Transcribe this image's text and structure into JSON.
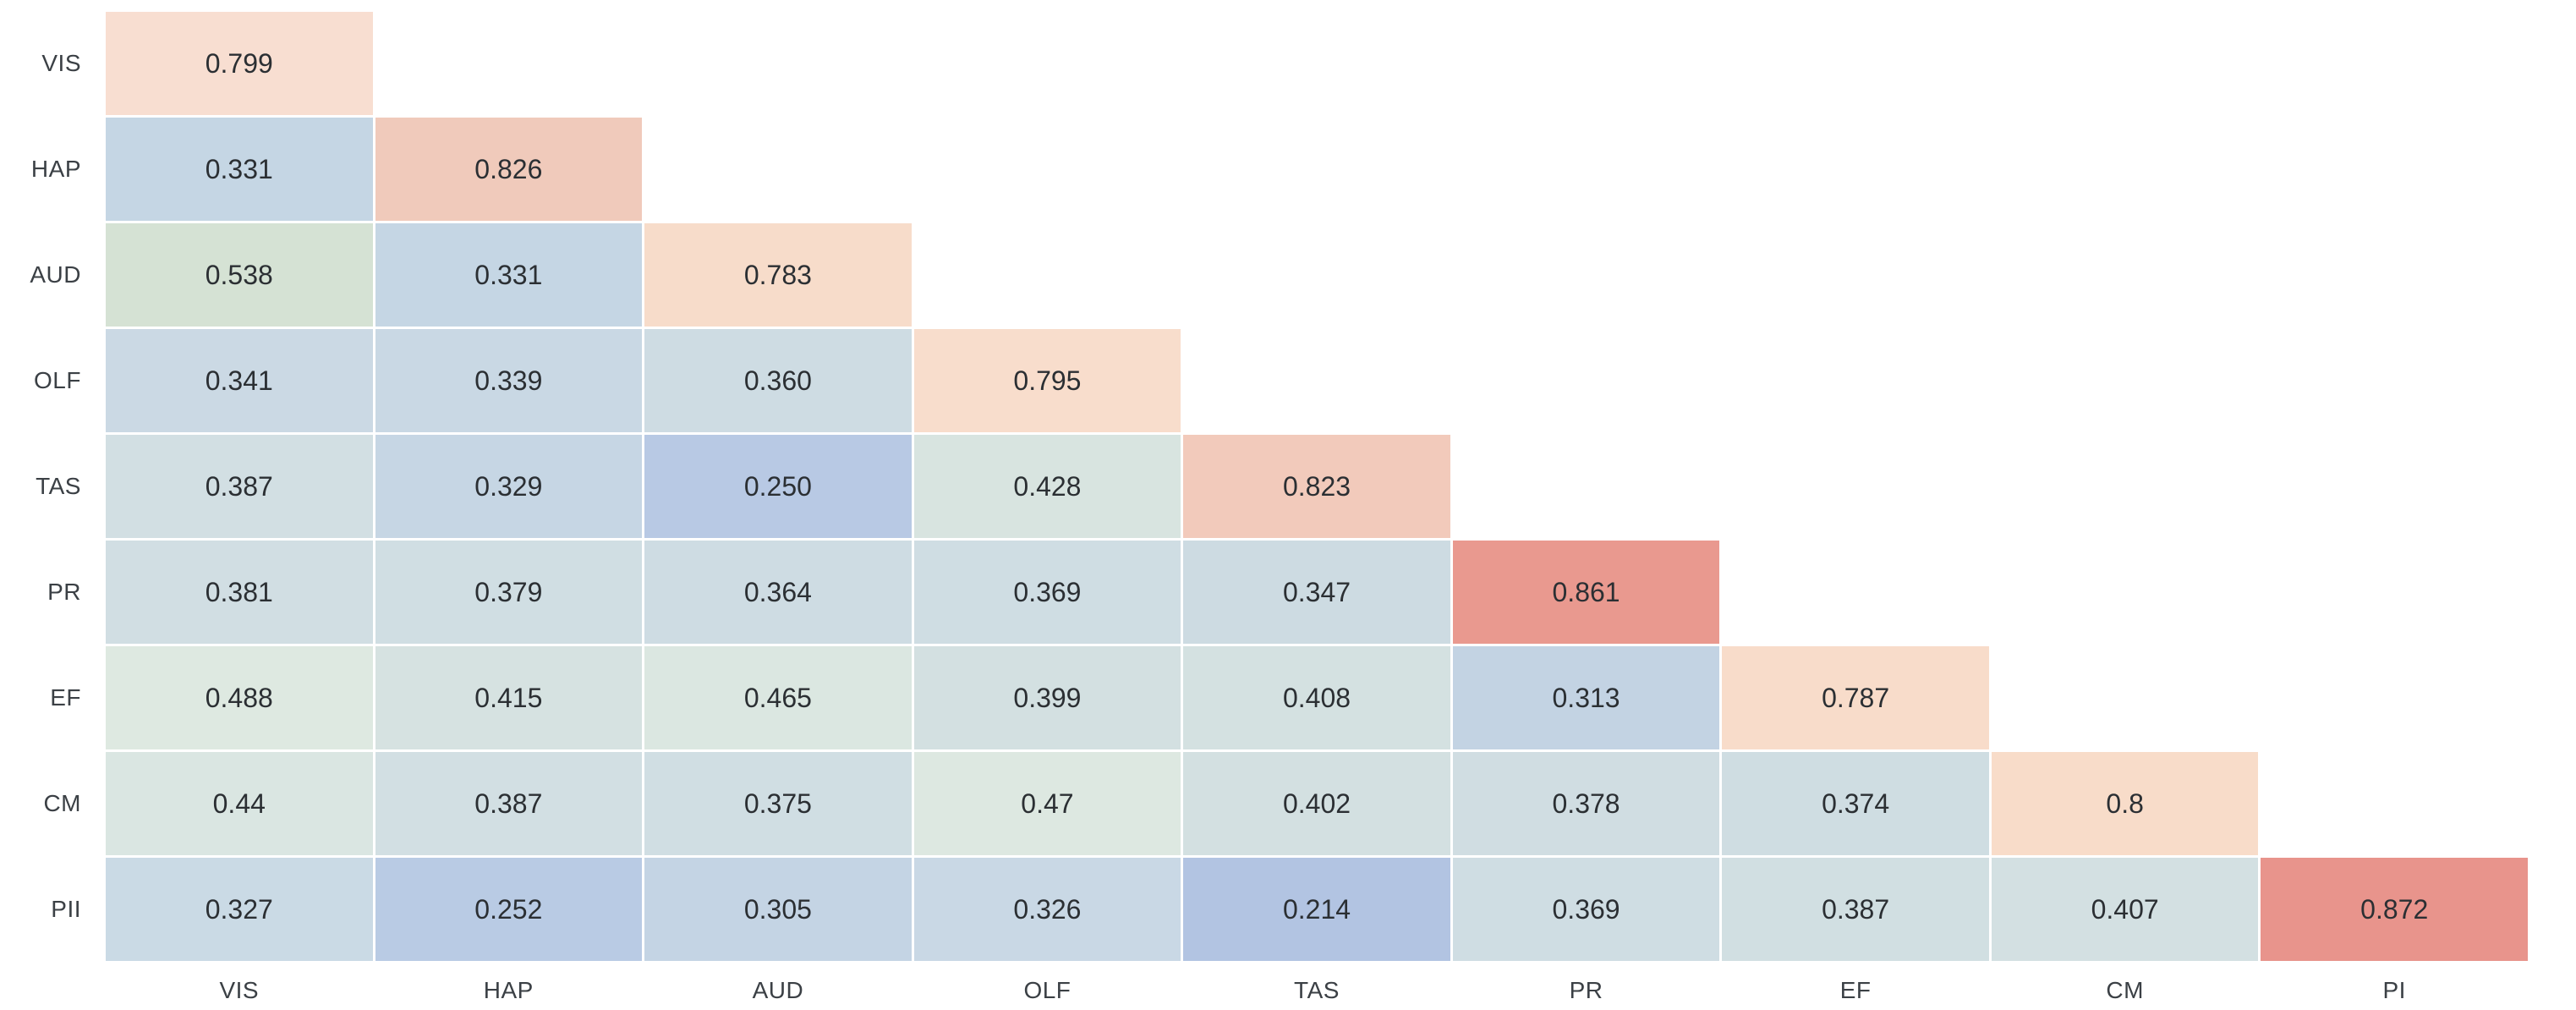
{
  "chart_data": {
    "type": "heatmap",
    "subtype": "lower-triangular-correlation-matrix",
    "title": "",
    "xlabel": "",
    "ylabel": "",
    "grid": false,
    "legend": "none",
    "value_range_observed": [
      0.214,
      0.872
    ],
    "colors": {
      "low_end": "#b2c4e2",
      "mid": "#dde8e1",
      "high_end": "#e8948c",
      "gap": "#ffffff",
      "cell_text": "#2b2f33",
      "axis_label_text": "#3b4045",
      "background": "#ffffff"
    },
    "row_labels": [
      "VIS",
      "HAP",
      "AUD",
      "OLF",
      "TAS",
      "PR",
      "EF",
      "CM",
      "PII"
    ],
    "col_labels": [
      "VIS",
      "HAP",
      "AUD",
      "OLF",
      "TAS",
      "PR",
      "EF",
      "CM",
      "PI"
    ],
    "rows": [
      {
        "label": "VIS",
        "cells": [
          {
            "v": "0.799",
            "c": "#f8ded1"
          }
        ]
      },
      {
        "label": "HAP",
        "cells": [
          {
            "v": "0.331",
            "c": "#c5d6e4"
          },
          {
            "v": "0.826",
            "c": "#f0cabb"
          }
        ]
      },
      {
        "label": "AUD",
        "cells": [
          {
            "v": "0.538",
            "c": "#d5e2d4"
          },
          {
            "v": "0.331",
            "c": "#c5d6e4"
          },
          {
            "v": "0.783",
            "c": "#f7dcca"
          }
        ]
      },
      {
        "label": "OLF",
        "cells": [
          {
            "v": "0.341",
            "c": "#cbd9e4"
          },
          {
            "v": "0.339",
            "c": "#c9d8e4"
          },
          {
            "v": "0.360",
            "c": "#cedce3"
          },
          {
            "v": "0.795",
            "c": "#f8ddcc"
          }
        ]
      },
      {
        "label": "TAS",
        "cells": [
          {
            "v": "0.387",
            "c": "#d2dfe3"
          },
          {
            "v": "0.329",
            "c": "#c6d6e4"
          },
          {
            "v": "0.250",
            "c": "#b8c9e4"
          },
          {
            "v": "0.428",
            "c": "#d8e4e0"
          },
          {
            "v": "0.823",
            "c": "#f2cabb"
          }
        ]
      },
      {
        "label": "PR",
        "cells": [
          {
            "v": "0.381",
            "c": "#d1dee3"
          },
          {
            "v": "0.379",
            "c": "#d0dee3"
          },
          {
            "v": "0.364",
            "c": "#cedce3"
          },
          {
            "v": "0.369",
            "c": "#cfdde3"
          },
          {
            "v": "0.347",
            "c": "#cddbe2"
          },
          {
            "v": "0.861",
            "c": "#e9998f"
          }
        ]
      },
      {
        "label": "EF",
        "cells": [
          {
            "v": "0.488",
            "c": "#dee9e1"
          },
          {
            "v": "0.415",
            "c": "#d6e2e1"
          },
          {
            "v": "0.465",
            "c": "#dbe7e1"
          },
          {
            "v": "0.399",
            "c": "#d3e0e1"
          },
          {
            "v": "0.408",
            "c": "#d4e1e1"
          },
          {
            "v": "0.313",
            "c": "#c3d3e3"
          },
          {
            "v": "0.787",
            "c": "#f8dcca"
          }
        ]
      },
      {
        "label": "CM",
        "cells": [
          {
            "v": "0.44",
            "c": "#dae6e2"
          },
          {
            "v": "0.387",
            "c": "#d2dfe3"
          },
          {
            "v": "0.375",
            "c": "#d0dee3"
          },
          {
            "v": "0.47",
            "c": "#dde8e1"
          },
          {
            "v": "0.402",
            "c": "#d3e0e1"
          },
          {
            "v": "0.378",
            "c": "#d0dde2"
          },
          {
            "v": "0.374",
            "c": "#cfdde2"
          },
          {
            "v": "0.8",
            "c": "#f8dcc9"
          }
        ]
      },
      {
        "label": "PII",
        "cells": [
          {
            "v": "0.327",
            "c": "#cadae5"
          },
          {
            "v": "0.252",
            "c": "#b9cbe4"
          },
          {
            "v": "0.305",
            "c": "#c4d4e4"
          },
          {
            "v": "0.326",
            "c": "#c9d8e5"
          },
          {
            "v": "0.214",
            "c": "#b2c4e2"
          },
          {
            "v": "0.369",
            "c": "#cfdde3"
          },
          {
            "v": "0.387",
            "c": "#d1dfe2"
          },
          {
            "v": "0.407",
            "c": "#d3e0e2"
          },
          {
            "v": "0.872",
            "c": "#e8948c"
          }
        ]
      }
    ]
  }
}
